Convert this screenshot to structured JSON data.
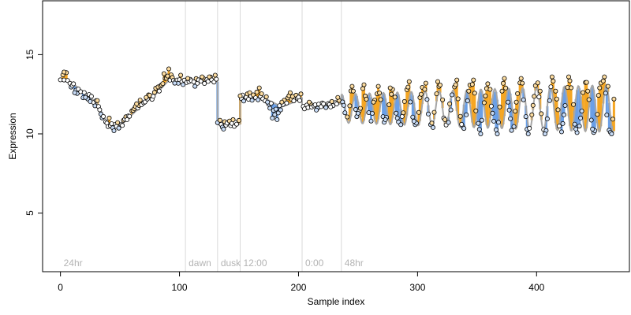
{
  "chart_data": {
    "type": "scatter",
    "xlabel": "Sample index",
    "ylabel": "Expression",
    "xlim": [
      -15,
      478
    ],
    "ylim": [
      1.3,
      18.4
    ],
    "x_ticks": [
      0,
      100,
      200,
      300,
      400
    ],
    "y_ticks": [
      5,
      10,
      15
    ],
    "grid": false,
    "legend": "none",
    "colors": {
      "above": "#f5a623",
      "below": "#6a9fe6",
      "fit": "#a6a6a6",
      "point_fill": "#ffffff",
      "point_edge": "#000000",
      "divider": "#d9d9d9",
      "region_label": "#b3b3b3"
    },
    "regions": [
      {
        "label": "24hr",
        "start": 0
      },
      {
        "label": "dawn",
        "start": 105
      },
      {
        "label": "dusk",
        "start": 132
      },
      {
        "label": "12:00",
        "start": 151
      },
      {
        "label": "0:00",
        "start": 203
      },
      {
        "label": "48hr",
        "start": 236
      }
    ],
    "fit_segments": [
      {
        "x": [
          0,
          10,
          20,
          30,
          40,
          50,
          60,
          70,
          80,
          90,
          97,
          105
        ],
        "y": [
          13.5,
          13.2,
          12.6,
          12.0,
          10.6,
          10.5,
          11.2,
          11.9,
          12.5,
          13.3,
          13.4,
          13.3
        ]
      },
      {
        "x": [
          105,
          132
        ],
        "y": [
          13.3,
          13.3
        ]
      },
      {
        "x": [
          132,
          140,
          151
        ],
        "y": [
          10.6,
          10.6,
          10.6
        ]
      },
      {
        "x": [
          151,
          170,
          178,
          186,
          196,
          203
        ],
        "y": [
          12.3,
          12.3,
          12.0,
          11.7,
          12.0,
          12.3
        ]
      },
      {
        "x": [
          203,
          236
        ],
        "y": [
          11.7,
          11.9
        ]
      }
    ],
    "oscillation": {
      "x_start": 236,
      "x_end": 465,
      "mean": 11.6,
      "amplitude_start": 0.9,
      "amplitude_end": 1.5,
      "period": 11.7,
      "phase_x": 245
    },
    "points": [
      [
        0,
        13.41
      ],
      [
        2,
        13.72
      ],
      [
        3,
        13.4
      ],
      [
        5,
        13.86
      ],
      [
        6,
        13.37
      ],
      [
        8,
        13.19
      ],
      [
        9,
        12.95
      ],
      [
        10,
        13.06
      ],
      [
        11,
        13.16
      ],
      [
        13,
        12.76
      ],
      [
        14,
        12.55
      ],
      [
        15,
        12.83
      ],
      [
        17,
        12.66
      ],
      [
        19,
        12.28
      ],
      [
        20,
        12.61
      ],
      [
        22,
        12.4
      ],
      [
        23,
        12.2
      ],
      [
        24,
        12.48
      ],
      [
        25,
        12.04
      ],
      [
        26,
        12.37
      ],
      [
        28,
        11.98
      ],
      [
        29,
        11.77
      ],
      [
        30,
        12.1
      ],
      [
        32,
        11.73
      ],
      [
        33,
        11.52
      ],
      [
        34,
        11.25
      ],
      [
        35,
        11.01
      ],
      [
        36,
        11.1
      ],
      [
        38,
        10.76
      ],
      [
        39,
        10.68
      ],
      [
        40,
        10.46
      ],
      [
        42,
        10.51
      ],
      [
        43,
        10.64
      ],
      [
        44,
        10.38
      ],
      [
        46,
        10.59
      ],
      [
        47,
        10.47
      ],
      [
        48,
        10.71
      ],
      [
        49,
        10.36
      ],
      [
        51,
        10.58
      ],
      [
        52,
        10.53
      ],
      [
        53,
        10.86
      ],
      [
        54,
        10.92
      ],
      [
        55,
        11.08
      ],
      [
        57,
        11.13
      ],
      [
        58,
        11.11
      ],
      [
        60,
        11.45
      ],
      [
        61,
        11.48
      ],
      [
        62,
        11.59
      ],
      [
        63,
        11.73
      ],
      [
        65,
        11.63
      ],
      [
        66,
        11.79
      ],
      [
        67,
        12.13
      ],
      [
        68,
        11.84
      ],
      [
        70,
        11.96
      ],
      [
        71,
        12.01
      ],
      [
        73,
        12.2
      ],
      [
        74,
        12.46
      ],
      [
        75,
        12.44
      ],
      [
        77,
        12.18
      ],
      [
        78,
        12.37
      ],
      [
        79,
        12.62
      ],
      [
        80,
        12.88
      ],
      [
        82,
        12.96
      ],
      [
        84,
        13.03
      ],
      [
        85,
        13.09
      ],
      [
        86,
        13.17
      ],
      [
        88,
        13.5
      ],
      [
        89,
        13.51
      ],
      [
        90,
        13.65
      ],
      [
        92,
        13.39
      ],
      [
        93,
        13.72
      ],
      [
        94,
        13.56
      ],
      [
        95,
        13.38
      ],
      [
        97,
        13.34
      ],
      [
        98,
        13.4
      ],
      [
        99,
        13.19
      ],
      [
        100,
        13.42
      ],
      [
        102,
        13.29
      ],
      [
        103,
        13.11
      ],
      [
        104,
        13.39
      ],
      [
        106,
        13.24
      ],
      [
        108,
        13.3
      ],
      [
        109,
        13.44
      ],
      [
        110,
        13.36
      ],
      [
        112,
        13.28
      ],
      [
        114,
        13.49
      ],
      [
        115,
        13.19
      ],
      [
        116,
        13.41
      ],
      [
        118,
        13.33
      ],
      [
        120,
        13.52
      ],
      [
        121,
        13.18
      ],
      [
        123,
        13.43
      ],
      [
        124,
        13.31
      ],
      [
        126,
        13.59
      ],
      [
        127,
        13.41
      ],
      [
        129,
        13.27
      ],
      [
        131,
        13.45
      ],
      [
        132,
        10.71
      ],
      [
        134,
        10.86
      ],
      [
        135,
        10.59
      ],
      [
        136,
        10.42
      ],
      [
        138,
        10.77
      ],
      [
        139,
        10.55
      ],
      [
        140,
        10.68
      ],
      [
        142,
        10.81
      ],
      [
        143,
        10.52
      ],
      [
        144,
        10.66
      ],
      [
        146,
        10.47
      ],
      [
        147,
        10.72
      ],
      [
        148,
        10.61
      ],
      [
        150,
        10.85
      ],
      [
        152,
        12.23
      ],
      [
        153,
        12.45
      ],
      [
        154,
        12.07
      ],
      [
        156,
        12.31
      ],
      [
        157,
        12.52
      ],
      [
        158,
        12.18
      ],
      [
        160,
        12.39
      ],
      [
        161,
        12.12
      ],
      [
        162,
        12.46
      ],
      [
        164,
        12.28
      ],
      [
        165,
        12.64
      ],
      [
        166,
        12.15
      ],
      [
        168,
        12.37
      ],
      [
        169,
        12.53
      ],
      [
        170,
        12.21
      ],
      [
        172,
        12.08
      ],
      [
        173,
        12.34
      ],
      [
        175,
        11.87
      ],
      [
        176,
        11.62
      ],
      [
        177,
        11.93
      ],
      [
        179,
        11.48
      ],
      [
        180,
        11.21
      ],
      [
        181,
        11.56
      ],
      [
        183,
        11.32
      ],
      [
        184,
        11.78
      ],
      [
        185,
        11.51
      ],
      [
        187,
        11.86
      ],
      [
        188,
        12.12
      ],
      [
        190,
        11.95
      ],
      [
        191,
        12.27
      ],
      [
        192,
        12.41
      ],
      [
        194,
        12.19
      ],
      [
        195,
        12.36
      ],
      [
        196,
        12.08
      ],
      [
        198,
        12.44
      ],
      [
        199,
        12.25
      ],
      [
        200,
        12.31
      ],
      [
        202,
        12.52
      ],
      [
        204,
        11.73
      ],
      [
        205,
        11.58
      ],
      [
        207,
        11.82
      ],
      [
        208,
        11.66
      ],
      [
        210,
        11.91
      ],
      [
        211,
        11.69
      ],
      [
        213,
        11.77
      ],
      [
        214,
        11.84
      ],
      [
        216,
        11.61
      ],
      [
        217,
        11.88
      ],
      [
        219,
        11.72
      ],
      [
        220,
        11.95
      ],
      [
        222,
        11.79
      ],
      [
        223,
        11.66
      ],
      [
        225,
        11.92
      ],
      [
        226,
        11.85
      ],
      [
        228,
        12.04
      ],
      [
        229,
        11.78
      ],
      [
        231,
        11.97
      ],
      [
        232,
        11.89
      ],
      [
        234,
        12.11
      ],
      [
        237,
        12.01
      ],
      [
        239,
        11.33
      ],
      [
        241,
        11.07
      ],
      [
        243,
        11.77
      ],
      [
        244,
        12.71
      ],
      [
        246,
        12.7
      ],
      [
        248,
        11.54
      ],
      [
        249,
        11.09
      ],
      [
        251,
        11.45
      ],
      [
        252,
        11.61
      ],
      [
        254,
        12.86
      ],
      [
        256,
        12.39
      ],
      [
        257,
        12.19
      ],
      [
        259,
        11.34
      ],
      [
        261,
        10.81
      ],
      [
        262,
        11.29
      ],
      [
        264,
        12.13
      ],
      [
        266,
        12.53
      ],
      [
        268,
        12.58
      ],
      [
        269,
        12.16
      ],
      [
        271,
        11.09
      ],
      [
        272,
        10.73
      ],
      [
        274,
        11.04
      ],
      [
        276,
        11.84
      ],
      [
        278,
        12.5
      ],
      [
        279,
        12.81
      ],
      [
        281,
        12.32
      ],
      [
        282,
        11.3
      ],
      [
        284,
        10.75
      ],
      [
        286,
        10.58
      ],
      [
        288,
        11.33
      ],
      [
        289,
        12.04
      ],
      [
        291,
        12.79
      ],
      [
        292,
        12.95
      ],
      [
        294,
        12.01
      ],
      [
        296,
        11.06
      ],
      [
        298,
        10.58
      ],
      [
        299,
        10.68
      ],
      [
        301,
        11.35
      ],
      [
        302,
        12.29
      ],
      [
        304,
        12.93
      ],
      [
        306,
        12.81
      ],
      [
        308,
        12.17
      ],
      [
        309,
        11.25
      ],
      [
        311,
        10.58
      ],
      [
        312,
        10.68
      ],
      [
        314,
        11.36
      ],
      [
        316,
        12.53
      ],
      [
        318,
        12.99
      ],
      [
        319,
        13.08
      ],
      [
        321,
        12.15
      ],
      [
        322,
        11.0
      ],
      [
        324,
        10.56
      ],
      [
        326,
        10.72
      ],
      [
        328,
        11.51
      ],
      [
        329,
        12.46
      ],
      [
        331,
        12.96
      ],
      [
        332,
        13.1
      ],
      [
        334,
        12.21
      ],
      [
        336,
        11.11
      ],
      [
        338,
        10.46
      ],
      [
        339,
        10.34
      ],
      [
        341,
        11.2
      ],
      [
        342,
        12.09
      ],
      [
        344,
        13.08
      ],
      [
        346,
        13.12
      ],
      [
        348,
        12.57
      ],
      [
        349,
        11.45
      ],
      [
        351,
        10.66
      ],
      [
        352,
        10.28
      ],
      [
        354,
        10.86
      ],
      [
        356,
        11.97
      ],
      [
        358,
        12.86
      ],
      [
        359,
        13.16
      ],
      [
        361,
        12.81
      ],
      [
        362,
        11.75
      ],
      [
        364,
        10.8
      ],
      [
        366,
        10.26
      ],
      [
        368,
        10.73
      ],
      [
        369,
        11.7
      ],
      [
        371,
        12.7
      ],
      [
        372,
        13.19
      ],
      [
        374,
        12.89
      ],
      [
        376,
        12.0
      ],
      [
        378,
        10.96
      ],
      [
        379,
        10.22
      ],
      [
        381,
        10.46
      ],
      [
        382,
        11.43
      ],
      [
        384,
        12.54
      ],
      [
        386,
        13.22
      ],
      [
        388,
        13.2
      ],
      [
        389,
        12.15
      ],
      [
        391,
        11.09
      ],
      [
        392,
        10.29
      ],
      [
        394,
        10.35
      ],
      [
        396,
        11.2
      ],
      [
        398,
        12.37
      ],
      [
        399,
        13.04
      ],
      [
        401,
        13.22
      ],
      [
        402,
        12.33
      ],
      [
        404,
        11.27
      ],
      [
        406,
        10.27
      ],
      [
        408,
        10.21
      ],
      [
        409,
        10.95
      ],
      [
        411,
        12.1
      ],
      [
        412,
        12.97
      ],
      [
        414,
        13.33
      ],
      [
        416,
        12.7
      ],
      [
        418,
        11.52
      ],
      [
        419,
        10.49
      ],
      [
        421,
        10.13
      ],
      [
        422,
        10.65
      ],
      [
        424,
        11.79
      ],
      [
        426,
        12.93
      ],
      [
        428,
        13.35
      ],
      [
        429,
        12.91
      ],
      [
        431,
        11.85
      ],
      [
        432,
        10.61
      ],
      [
        434,
        10.08
      ],
      [
        436,
        10.49
      ],
      [
        438,
        11.44
      ],
      [
        439,
        12.61
      ],
      [
        441,
        13.24
      ],
      [
        442,
        13.25
      ],
      [
        444,
        12.16
      ],
      [
        446,
        10.87
      ],
      [
        448,
        10.09
      ],
      [
        449,
        10.2
      ],
      [
        451,
        11.23
      ],
      [
        452,
        12.43
      ],
      [
        454,
        13.21
      ],
      [
        456,
        13.34
      ],
      [
        458,
        12.57
      ],
      [
        459,
        11.19
      ],
      [
        461,
        10.23
      ],
      [
        462,
        10.1
      ],
      [
        464,
        10.93
      ],
      [
        465,
        12.2
      ],
      [
        3,
        13.9
      ],
      [
        12,
        12.6
      ],
      [
        21,
        12.3
      ],
      [
        31,
        12.1
      ],
      [
        41,
        11.0
      ],
      [
        45,
        10.2
      ],
      [
        56,
        10.9
      ],
      [
        64,
        11.9
      ],
      [
        72,
        12.3
      ],
      [
        83,
        12.7
      ],
      [
        87,
        13.8
      ],
      [
        91,
        14.1
      ],
      [
        96,
        13.2
      ],
      [
        101,
        13.7
      ],
      [
        107,
        13.5
      ],
      [
        113,
        13.0
      ],
      [
        119,
        13.6
      ],
      [
        125,
        13.6
      ],
      [
        130,
        13.7
      ],
      [
        137,
        10.3
      ],
      [
        145,
        10.9
      ],
      [
        151,
        12.4
      ],
      [
        159,
        12.6
      ],
      [
        167,
        12.9
      ],
      [
        174,
        12.0
      ],
      [
        178,
        11.0
      ],
      [
        182,
        10.9
      ],
      [
        186,
        12.0
      ],
      [
        193,
        12.6
      ],
      [
        201,
        12.1
      ],
      [
        209,
        12.0
      ],
      [
        215,
        11.5
      ],
      [
        221,
        11.9
      ],
      [
        227,
        11.7
      ],
      [
        233,
        12.3
      ],
      [
        238,
        11.8
      ],
      [
        245,
        13.0
      ],
      [
        250,
        11.3
      ],
      [
        255,
        13.1
      ],
      [
        263,
        12.0
      ],
      [
        267,
        13.0
      ],
      [
        273,
        10.9
      ],
      [
        277,
        12.9
      ],
      [
        283,
        11.0
      ],
      [
        287,
        11.1
      ],
      [
        293,
        13.3
      ],
      [
        297,
        10.8
      ],
      [
        303,
        12.5
      ],
      [
        307,
        13.2
      ],
      [
        313,
        10.4
      ],
      [
        317,
        13.3
      ],
      [
        323,
        10.9
      ],
      [
        327,
        11.9
      ],
      [
        333,
        13.4
      ],
      [
        337,
        10.6
      ],
      [
        343,
        12.7
      ],
      [
        347,
        13.4
      ],
      [
        353,
        10.0
      ],
      [
        357,
        12.4
      ],
      [
        363,
        11.3
      ],
      [
        367,
        10.0
      ],
      [
        373,
        13.5
      ],
      [
        377,
        11.5
      ],
      [
        383,
        12.0
      ],
      [
        387,
        13.5
      ],
      [
        393,
        10.0
      ],
      [
        397,
        11.8
      ],
      [
        403,
        12.7
      ],
      [
        407,
        10.0
      ],
      [
        413,
        13.6
      ],
      [
        417,
        12.2
      ],
      [
        423,
        11.2
      ],
      [
        427,
        13.6
      ],
      [
        433,
        10.3
      ],
      [
        437,
        11.0
      ],
      [
        443,
        12.7
      ],
      [
        447,
        10.3
      ],
      [
        453,
        12.9
      ],
      [
        457,
        13.6
      ],
      [
        463,
        10.0
      ],
      [
        460,
        13.0
      ]
    ]
  }
}
